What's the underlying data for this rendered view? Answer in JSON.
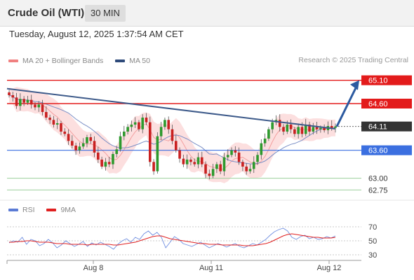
{
  "header": {
    "title": "Crude Oil (WTI)",
    "timeframe": "30 MIN"
  },
  "datetime": "Tuesday, August 12, 2025 1:37:54 AM CET",
  "legend": {
    "bb_label": "MA 20 + Bollinger Bands",
    "bb_color": "#f08080",
    "ma50_label": "MA 50",
    "ma50_color": "#2e4a7a"
  },
  "credit": "Research © 2025 Trading Central",
  "rsi_legend": {
    "rsi_label": "RSI",
    "rsi_color": "#5b7bd5",
    "ma_label": "9MA",
    "ma_color": "#e02020"
  },
  "chart_data": {
    "type": "candlestick",
    "instrument": "Crude Oil (WTI)",
    "interval": "30 MIN",
    "price_range": [
      62.68,
      65.38
    ],
    "current_price": 64.11,
    "x_ticks": [
      "Aug 8",
      "Aug 11",
      "Aug 12"
    ],
    "levels": [
      {
        "value": 65.1,
        "label": "65.10",
        "kind": "target",
        "color": "#e31b1b"
      },
      {
        "value": 64.6,
        "label": "64.60",
        "kind": "resistance",
        "color": "#e31b1b"
      },
      {
        "value": 64.11,
        "label": "64.11",
        "kind": "last-price",
        "color": "#333333"
      },
      {
        "value": 63.6,
        "label": "63.60",
        "kind": "pivot",
        "color": "#3b6fe0"
      },
      {
        "value": 63.0,
        "label": "63.00",
        "kind": "support",
        "color": "#2e9a2e"
      },
      {
        "value": 62.75,
        "label": "62.75",
        "kind": "support",
        "color": "#2e9a2e"
      }
    ],
    "trendline": {
      "from": 64.92,
      "to": 64.06
    },
    "projection": {
      "from": 64.11,
      "to": 65.1
    },
    "price_path": [
      64.78,
      64.73,
      64.55,
      64.7,
      64.62,
      64.68,
      64.58,
      64.52,
      64.58,
      64.42,
      64.3,
      64.25,
      64.15,
      64.18,
      64.0,
      63.95,
      63.8,
      63.7,
      63.6,
      63.68,
      63.75,
      63.88,
      63.8,
      63.55,
      63.4,
      63.25,
      63.35,
      63.3,
      63.52,
      63.62,
      63.9,
      64.0,
      64.1,
      64.15,
      64.2,
      64.05,
      64.3,
      64.2,
      63.35,
      63.15,
      63.9,
      64.1,
      64.25,
      64.05,
      63.8,
      63.6,
      63.42,
      63.3,
      63.4,
      63.35,
      63.3,
      63.45,
      63.3,
      63.1,
      63.05,
      63.2,
      63.3,
      63.15,
      63.45,
      63.5,
      63.6,
      63.55,
      63.35,
      63.25,
      63.15,
      63.2,
      63.35,
      63.5,
      63.75,
      63.85,
      64.05,
      64.2,
      64.25,
      64.1,
      64.0,
      64.15,
      64.05,
      63.95,
      64.1,
      63.95,
      64.15,
      64.0,
      64.1,
      64.05,
      64.08,
      64.03,
      64.12,
      64.08,
      64.11
    ],
    "rsi": {
      "levels": [
        70,
        50,
        30
      ],
      "range": [
        20,
        80
      ],
      "rsi_values": [
        47,
        50,
        48,
        55,
        45,
        52,
        50,
        43,
        46,
        52,
        47,
        40,
        44,
        50,
        46,
        42,
        45,
        49,
        42,
        47,
        44,
        48,
        45,
        42,
        38,
        45,
        50,
        53,
        48,
        55,
        52,
        60,
        64,
        58,
        62,
        55,
        40,
        48,
        56,
        52,
        46,
        44,
        42,
        45,
        48,
        44,
        40,
        43,
        46,
        44,
        41,
        44,
        46,
        42,
        40,
        43,
        46,
        44,
        48,
        52,
        58,
        63,
        66,
        68,
        64,
        55,
        52,
        56,
        58,
        53,
        55,
        52,
        53,
        56,
        54,
        57
      ],
      "ma_values": [
        48,
        48,
        49,
        49,
        50,
        50,
        49,
        48,
        48,
        48,
        47,
        46,
        46,
        46,
        45,
        45,
        45,
        45,
        44,
        45,
        45,
        45,
        45,
        45,
        44,
        44,
        45,
        46,
        47,
        48,
        50,
        52,
        54,
        56,
        57,
        57,
        55,
        53,
        52,
        51,
        50,
        49,
        48,
        47,
        46,
        46,
        45,
        45,
        45,
        44,
        44,
        44,
        44,
        44,
        43,
        43,
        43,
        44,
        45,
        46,
        48,
        51,
        54,
        57,
        59,
        60,
        59,
        58,
        57,
        56,
        55,
        55,
        54,
        54,
        54,
        55
      ]
    }
  }
}
